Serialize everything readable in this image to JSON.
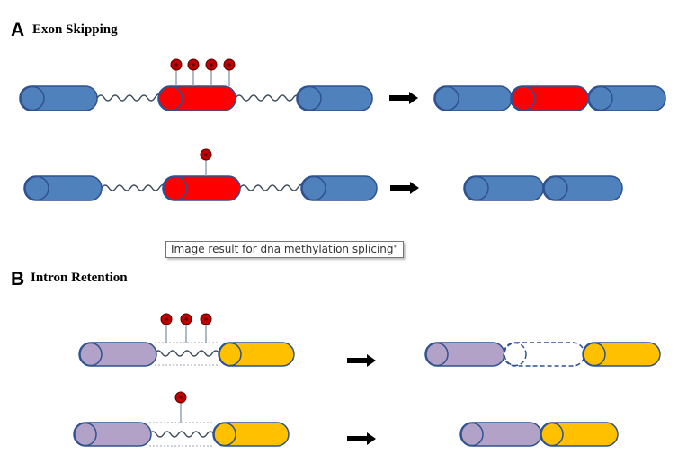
{
  "panels": [
    {
      "letter": "A",
      "title": "Exon Skipping"
    },
    {
      "letter": "B",
      "title": "Intron Retention"
    }
  ],
  "tooltip": {
    "text": "Image result for dna methylation splicing\""
  },
  "colors": {
    "exon_blue": "#4f81bd",
    "exon_red": "#ff0000",
    "exon_purple": "#b3a2c7",
    "exon_yellow": "#ffc000",
    "outline": "#2f528f",
    "methyl_mark": "#c00000",
    "arrow": "#000000"
  },
  "icons": [
    "methyl-group-lollipop-icon",
    "right-arrow-icon",
    "wavy-intron-line"
  ]
}
